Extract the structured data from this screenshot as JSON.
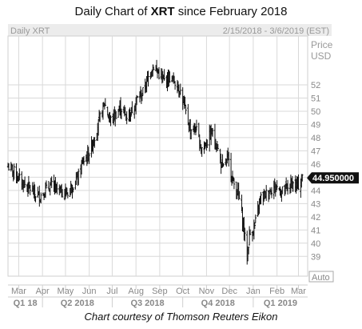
{
  "header": {
    "title_prefix": "Daily Chart of ",
    "title_ticker": "XRT",
    "title_suffix": " since February 2018"
  },
  "caption": "Chart courtesy of Thomson Reuters Eikon",
  "chart_data": {
    "type": "bar",
    "style": "ohlc",
    "series_name": "Daily XRT",
    "date_range": "2/15/2018 - 3/6/2019 (EST)",
    "ylabel": "Price",
    "yunit": "USD",
    "ylim": [
      37.5,
      55.7
    ],
    "y_ticks": [
      39,
      40,
      41,
      42,
      43,
      44,
      45,
      46,
      47,
      48,
      49,
      50,
      51,
      52
    ],
    "last_price": 44.95,
    "last_price_label": "44.950000",
    "month_labels": [
      "Mar",
      "Apr",
      "May",
      "Jun",
      "Jul",
      "Aug",
      "Sep",
      "Oct",
      "Nov",
      "Dec",
      "Jan",
      "Feb",
      "Mar"
    ],
    "quarter_labels": [
      "Q1 18",
      "Q2 2018",
      "Q3 2018",
      "Q4 2018",
      "Q1 2019"
    ],
    "x_start": "2018-02-15",
    "x_end": "2019-03-13",
    "scale_button": "Auto",
    "anchors": [
      [
        "2018-02-15",
        45.8
      ],
      [
        "2018-02-22",
        45.5
      ],
      [
        "2018-03-01",
        44.9
      ],
      [
        "2018-03-08",
        44.5
      ],
      [
        "2018-03-15",
        44.2
      ],
      [
        "2018-03-22",
        43.7
      ],
      [
        "2018-03-29",
        43.6
      ],
      [
        "2018-04-05",
        44.0
      ],
      [
        "2018-04-12",
        44.4
      ],
      [
        "2018-04-19",
        44.1
      ],
      [
        "2018-04-26",
        43.9
      ],
      [
        "2018-05-03",
        43.8
      ],
      [
        "2018-05-10",
        44.4
      ],
      [
        "2018-05-17",
        44.9
      ],
      [
        "2018-05-24",
        46.2
      ],
      [
        "2018-05-31",
        46.7
      ],
      [
        "2018-06-07",
        47.9
      ],
      [
        "2018-06-14",
        49.3
      ],
      [
        "2018-06-21",
        50.6
      ],
      [
        "2018-06-28",
        49.3
      ],
      [
        "2018-07-05",
        49.7
      ],
      [
        "2018-07-12",
        50.3
      ],
      [
        "2018-07-19",
        49.6
      ],
      [
        "2018-07-26",
        50.0
      ],
      [
        "2018-08-02",
        50.9
      ],
      [
        "2018-08-09",
        51.3
      ],
      [
        "2018-08-16",
        52.4
      ],
      [
        "2018-08-23",
        53.5
      ],
      [
        "2018-08-30",
        52.9
      ],
      [
        "2018-09-06",
        52.3
      ],
      [
        "2018-09-13",
        52.6
      ],
      [
        "2018-09-20",
        52.3
      ],
      [
        "2018-09-27",
        51.7
      ],
      [
        "2018-10-04",
        50.1
      ],
      [
        "2018-10-11",
        48.6
      ],
      [
        "2018-10-18",
        48.7
      ],
      [
        "2018-10-25",
        47.2
      ],
      [
        "2018-11-01",
        47.6
      ],
      [
        "2018-11-08",
        48.4
      ],
      [
        "2018-11-15",
        47.3
      ],
      [
        "2018-11-22",
        45.6
      ],
      [
        "2018-11-29",
        46.4
      ],
      [
        "2018-12-06",
        44.6
      ],
      [
        "2018-12-13",
        43.7
      ],
      [
        "2018-12-20",
        40.9
      ],
      [
        "2018-12-24",
        38.9
      ],
      [
        "2018-12-27",
        40.6
      ],
      [
        "2019-01-03",
        41.3
      ],
      [
        "2019-01-10",
        43.4
      ],
      [
        "2019-01-17",
        43.7
      ],
      [
        "2019-01-24",
        44.1
      ],
      [
        "2019-01-31",
        44.3
      ],
      [
        "2019-02-07",
        43.9
      ],
      [
        "2019-02-14",
        44.2
      ],
      [
        "2019-02-21",
        44.5
      ],
      [
        "2019-02-28",
        44.3
      ],
      [
        "2019-03-06",
        44.95
      ]
    ]
  }
}
